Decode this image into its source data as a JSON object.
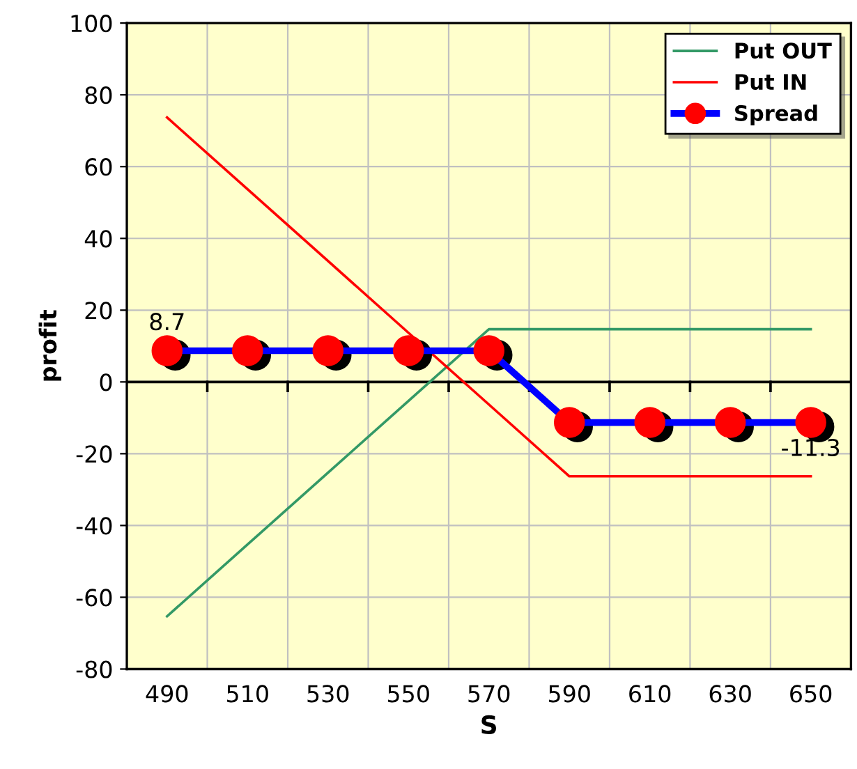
{
  "chart_data": {
    "type": "line",
    "xlabel": "S",
    "ylabel": "profit",
    "categories": [
      "490",
      "510",
      "530",
      "550",
      "570",
      "590",
      "610",
      "630",
      "650"
    ],
    "series": [
      {
        "name": "Put OUT",
        "color": "#339966",
        "values": [
          -65.3,
          -45.3,
          -25.3,
          -5.3,
          14.7,
          14.7,
          14.7,
          14.7,
          14.7
        ],
        "marker": "none"
      },
      {
        "name": "Put IN",
        "color": "#ff0000",
        "values": [
          73.7,
          53.7,
          33.7,
          13.7,
          -6.3,
          -26.3,
          -26.3,
          -26.3,
          -26.3
        ],
        "marker": "none"
      },
      {
        "name": "Spread",
        "color": "#0000ff",
        "values": [
          8.7,
          8.7,
          8.7,
          8.7,
          8.7,
          -11.3,
          -11.3,
          -11.3,
          -11.3
        ],
        "marker": "circle",
        "value_labels": [
          "8.7",
          null,
          null,
          null,
          null,
          null,
          null,
          null,
          "-11.3"
        ]
      }
    ],
    "ylim": [
      -80,
      100
    ],
    "yticks": [
      -80,
      -60,
      -40,
      -20,
      0,
      20,
      40,
      60,
      80,
      100
    ],
    "ref_lines": [
      {
        "axis": "y",
        "value": 0,
        "color": "#000000"
      }
    ],
    "grid": true,
    "legend": "top right",
    "line_style": "solid"
  }
}
